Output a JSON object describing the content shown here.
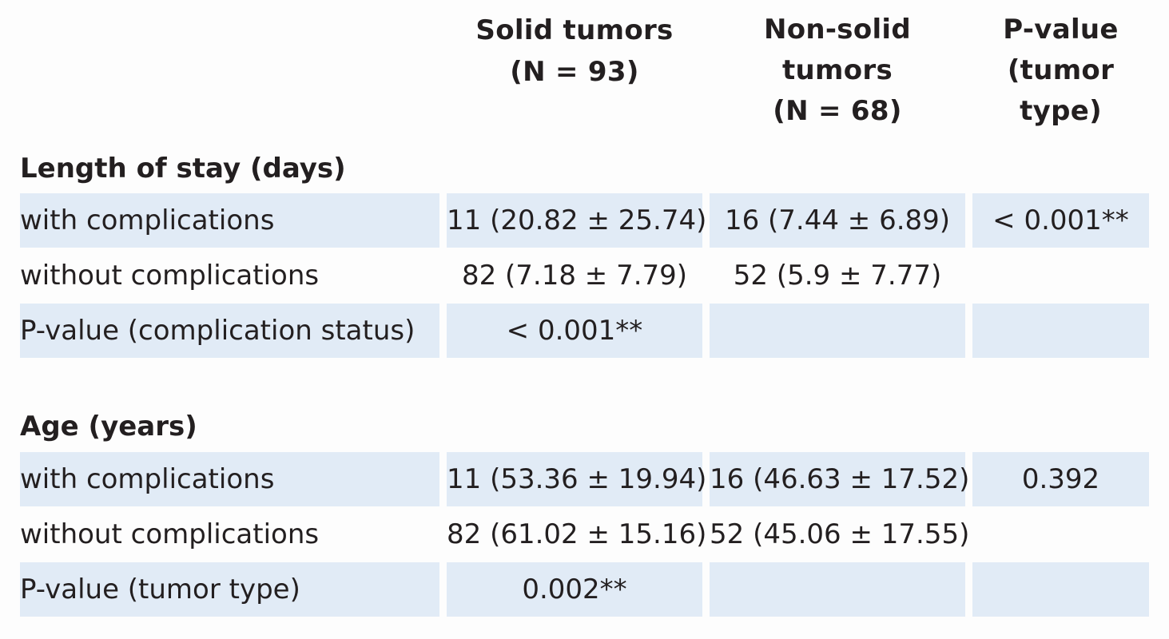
{
  "headers": {
    "solid": [
      "Solid tumors",
      "(N = 93)"
    ],
    "nonsolid": [
      "Non-solid",
      "tumors",
      "(N = 68)"
    ],
    "pvalue": [
      "P-value",
      "(tumor",
      "type)"
    ]
  },
  "sections": [
    {
      "title": "Length of stay (days)",
      "rows": [
        {
          "label": "with complications",
          "solid": "11 (20.82 ± 25.74)",
          "nonsolid": "16 (7.44 ± 6.89)",
          "pvalue": "< 0.001**"
        },
        {
          "label": "without complications",
          "solid": "82 (7.18 ± 7.79)",
          "nonsolid": "52 (5.9 ± 7.77)",
          "pvalue": ""
        },
        {
          "label": "P-value (complication status)",
          "solid": "< 0.001**",
          "nonsolid": "",
          "pvalue": ""
        }
      ]
    },
    {
      "title": "Age (years)",
      "rows": [
        {
          "label": "with complications",
          "solid": "11 (53.36 ± 19.94)",
          "nonsolid": "16 (46.63 ± 17.52)",
          "pvalue": "0.392"
        },
        {
          "label": "without complications",
          "solid": "82 (61.02 ± 15.16)",
          "nonsolid": "52 (45.06 ± 17.55)",
          "pvalue": ""
        },
        {
          "label": "P-value (tumor type)",
          "solid": "0.002**",
          "nonsolid": "",
          "pvalue": ""
        }
      ]
    }
  ],
  "colors": {
    "shade": "#e1ebf6",
    "text": "#231f20",
    "background": "#fdfdfd"
  }
}
